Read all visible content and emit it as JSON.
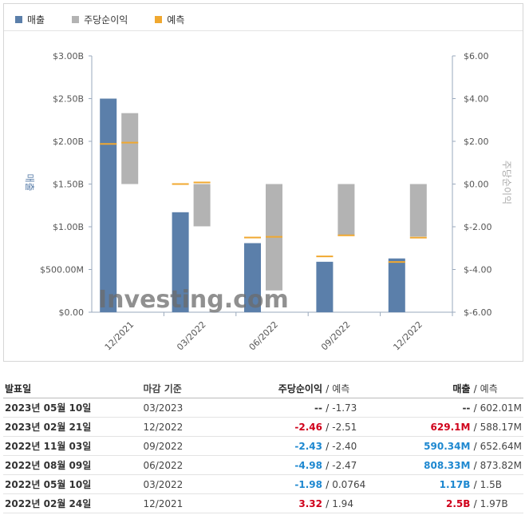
{
  "legend": [
    {
      "label": "매출",
      "color": "#5b7faa"
    },
    {
      "label": "주당순이익",
      "color": "#b3b3b3"
    },
    {
      "label": "예측",
      "color": "#f0a830"
    }
  ],
  "chart_data": {
    "type": "bar",
    "categories": [
      "12/2021",
      "03/2022",
      "06/2022",
      "09/2022",
      "12/2022"
    ],
    "series": [
      {
        "name": "매출",
        "axis": "left",
        "values": [
          2.5,
          1.17,
          0.80833,
          0.59034,
          0.6291
        ],
        "forecast": [
          1.97,
          1.5,
          0.87382,
          0.65264,
          0.58817
        ]
      },
      {
        "name": "주당순이익",
        "axis": "right",
        "values": [
          3.32,
          -1.98,
          -4.98,
          -2.43,
          -2.46
        ],
        "forecast": [
          1.94,
          0.0764,
          -2.47,
          -2.4,
          -2.51
        ]
      }
    ],
    "left_axis": {
      "label": "매출",
      "ticks": [
        "$0.00",
        "$500.00M",
        "$1.00B",
        "$1.50B",
        "$2.00B",
        "$2.50B",
        "$3.00B"
      ],
      "min": 0,
      "max": 3.0
    },
    "right_axis": {
      "label": "주당순이익",
      "ticks": [
        "$-6.00",
        "$-4.00",
        "$-2.00",
        "$0.00",
        "$2.00",
        "$4.00",
        "$6.00"
      ],
      "min": -6,
      "max": 6
    },
    "colors": {
      "revenue": "#5b7faa",
      "eps": "#b3b3b3",
      "forecast": "#f0a830"
    },
    "grid": false
  },
  "watermark": "Investing.com",
  "table": {
    "headers": {
      "date": "발표일",
      "period": "마감 기준",
      "eps": "주당순이익",
      "eps_forecast": "예측",
      "revenue": "매출",
      "revenue_forecast": "예측"
    },
    "rows": [
      {
        "date": "2023년 05월 10일",
        "period": "03/2023",
        "eps": "--",
        "eps_forecast": "-1.73",
        "revenue": "--",
        "revenue_forecast": "602.01M",
        "eps_color": "neutral",
        "rev_color": "neutral"
      },
      {
        "date": "2023년 02월 21일",
        "period": "12/2022",
        "eps": "-2.46",
        "eps_forecast": "-2.51",
        "revenue": "629.1M",
        "revenue_forecast": "588.17M",
        "eps_color": "neg-red",
        "rev_color": "neg-red"
      },
      {
        "date": "2022년 11월 03일",
        "period": "09/2022",
        "eps": "-2.43",
        "eps_forecast": "-2.40",
        "revenue": "590.34M",
        "revenue_forecast": "652.64M",
        "eps_color": "pos-blue",
        "rev_color": "pos-blue"
      },
      {
        "date": "2022년 08월 09일",
        "period": "06/2022",
        "eps": "-4.98",
        "eps_forecast": "-2.47",
        "revenue": "808.33M",
        "revenue_forecast": "873.82M",
        "eps_color": "pos-blue",
        "rev_color": "pos-blue"
      },
      {
        "date": "2022년 05월 10일",
        "period": "03/2022",
        "eps": "-1.98",
        "eps_forecast": "0.0764",
        "revenue": "1.17B",
        "revenue_forecast": "1.5B",
        "eps_color": "pos-blue",
        "rev_color": "pos-blue"
      },
      {
        "date": "2022년 02월 24일",
        "period": "12/2021",
        "eps": "3.32",
        "eps_forecast": "1.94",
        "revenue": "2.5B",
        "revenue_forecast": "1.97B",
        "eps_color": "neg-red",
        "rev_color": "neg-red"
      }
    ]
  }
}
